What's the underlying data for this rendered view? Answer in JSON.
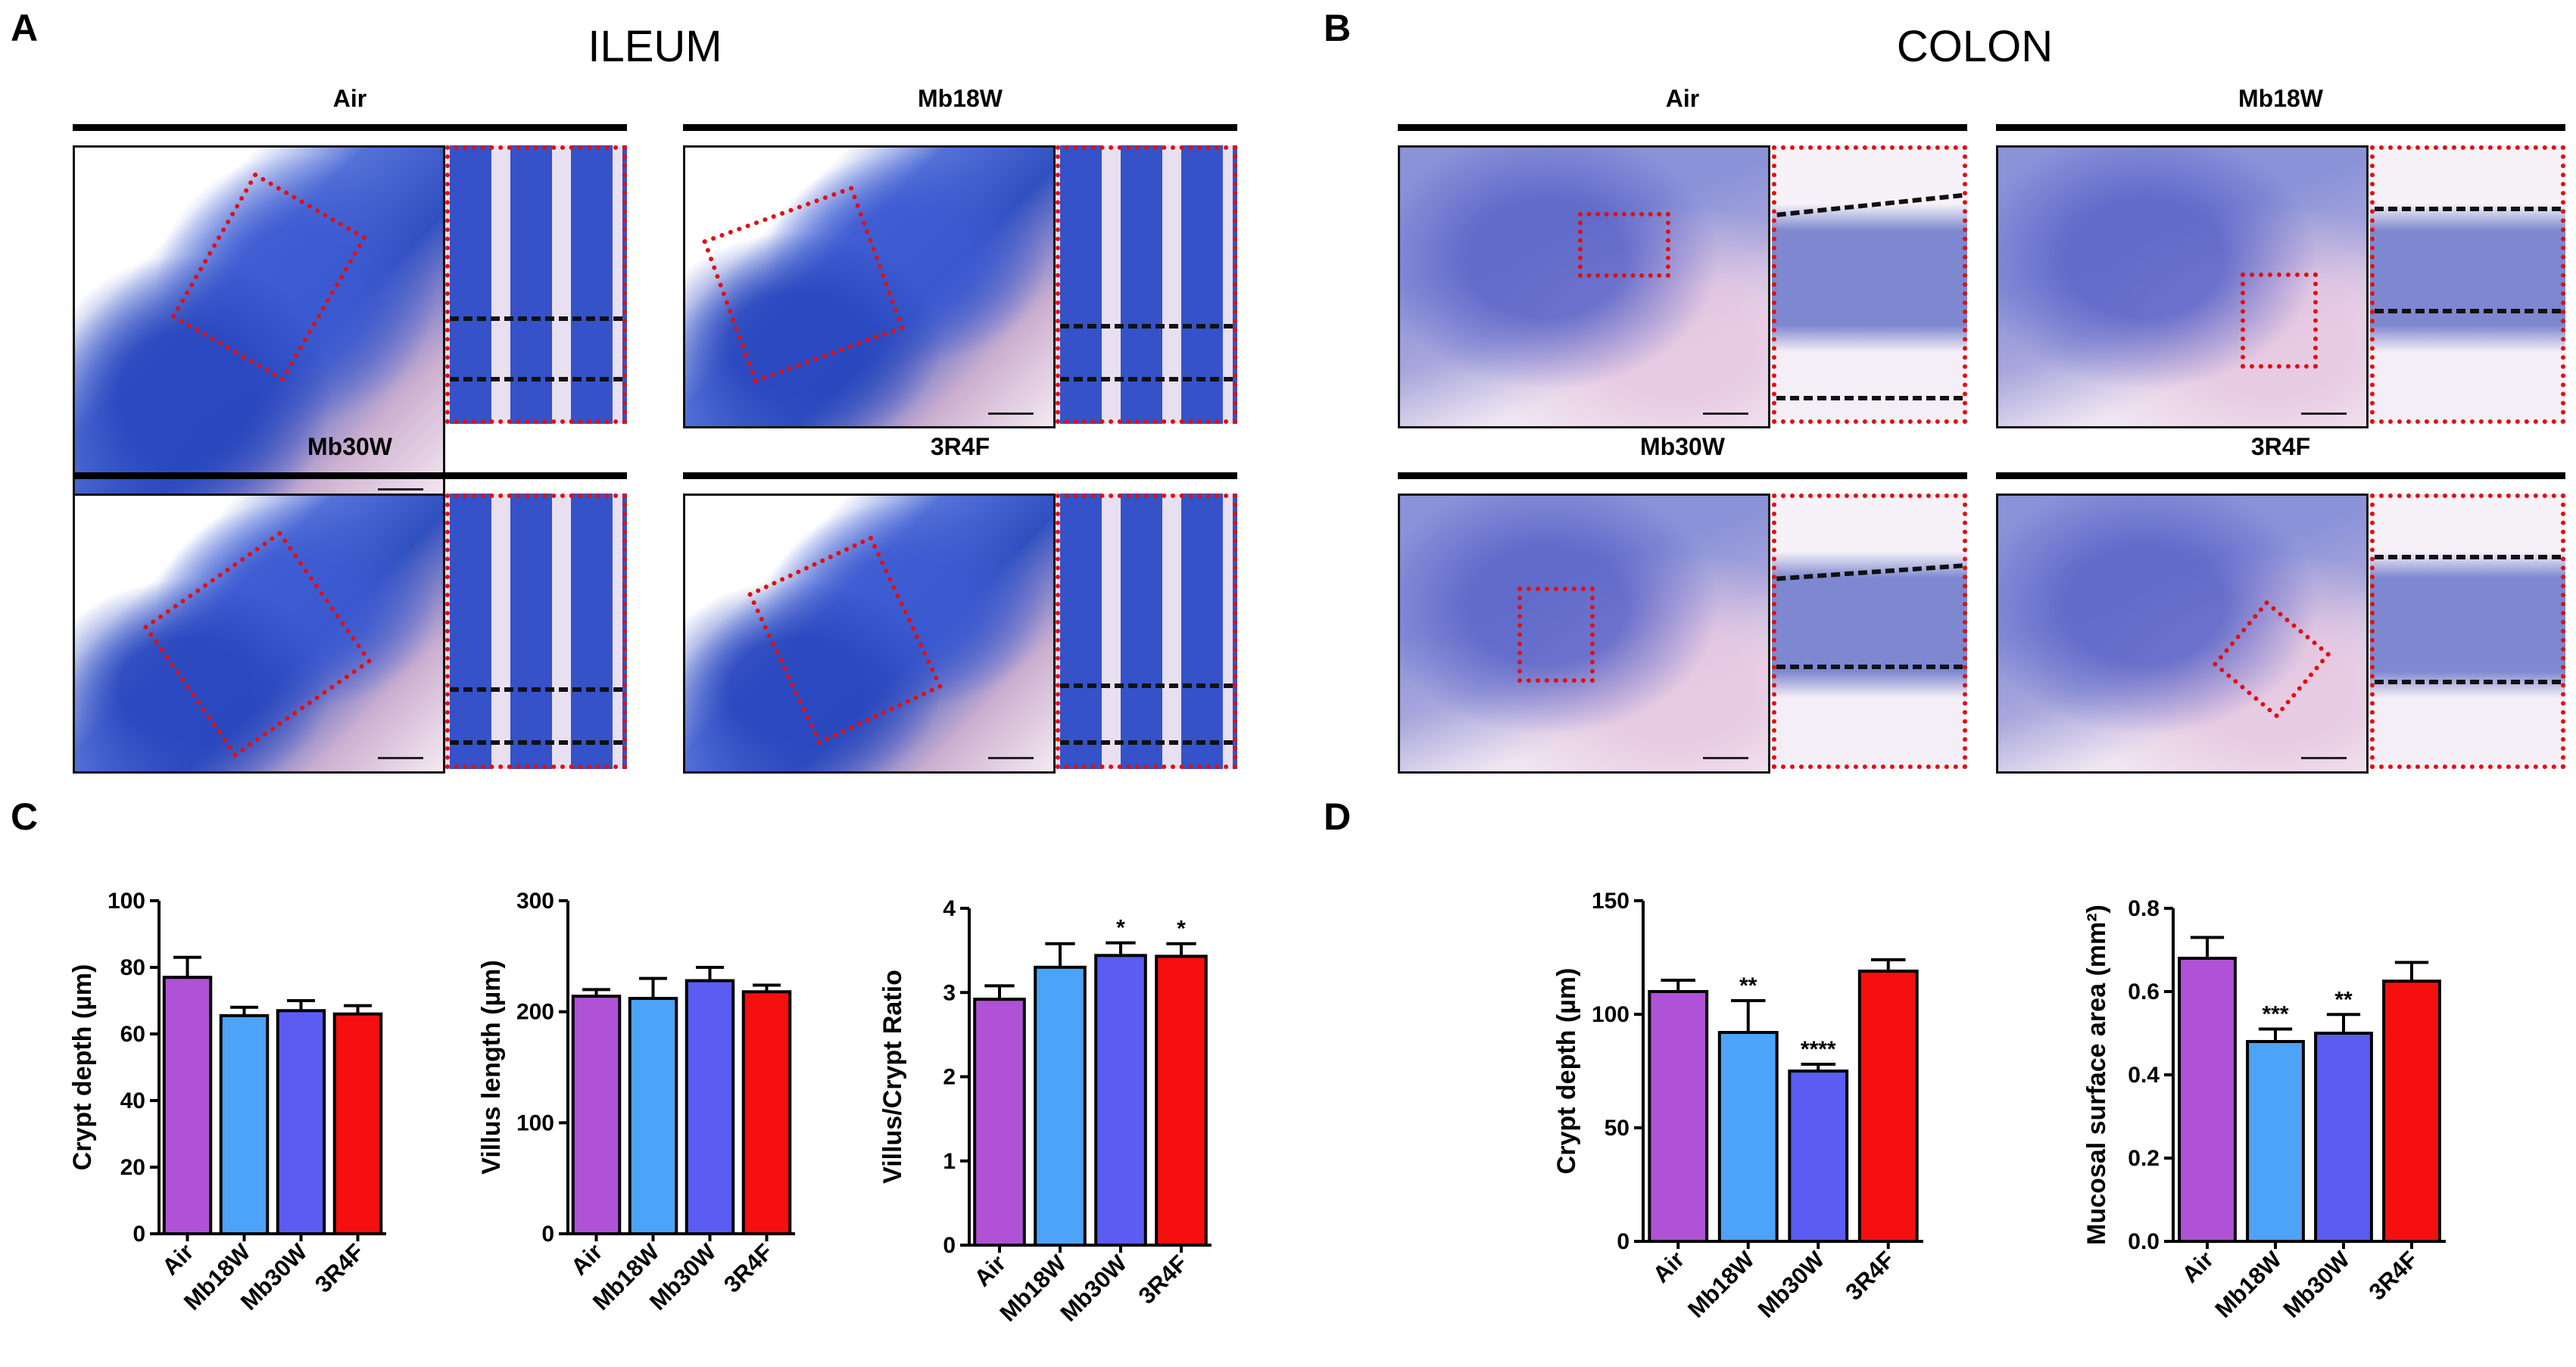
{
  "panels": {
    "A": {
      "letter": "A",
      "title": "ILEUM",
      "groups": [
        "Air",
        "Mb18W",
        "Mb30W",
        "3R4F"
      ]
    },
    "B": {
      "letter": "B",
      "title": "COLON",
      "groups": [
        "Air",
        "Mb18W",
        "Mb30W",
        "3R4F"
      ]
    },
    "C": {
      "letter": "C"
    },
    "D": {
      "letter": "D"
    }
  },
  "colors": {
    "Air": "#b052d6",
    "Mb18W": "#4ca3f7",
    "Mb30W": "#5a5cf2",
    "3R4F": "#f60f0f"
  },
  "chart_data": [
    {
      "id": "C1",
      "type": "bar",
      "ylabel": "Crypt depth (µm)",
      "ylim": [
        0,
        100
      ],
      "yticks": [
        "0",
        "20",
        "40",
        "60",
        "80",
        "100"
      ],
      "tickvals": [
        0,
        20,
        40,
        60,
        80,
        100
      ],
      "categories": [
        "Air",
        "Mb18W",
        "Mb30W",
        "3R4F"
      ],
      "values": [
        77,
        65.5,
        67,
        66
      ],
      "errors": [
        6,
        2.5,
        3,
        2.5
      ],
      "significance": [
        "",
        "",
        "",
        ""
      ]
    },
    {
      "id": "C2",
      "type": "bar",
      "ylabel": "Villus length (µm)",
      "ylim": [
        0,
        300
      ],
      "yticks": [
        "0",
        "100",
        "200",
        "300"
      ],
      "tickvals": [
        0,
        100,
        200,
        300
      ],
      "categories": [
        "Air",
        "Mb18W",
        "Mb30W",
        "3R4F"
      ],
      "values": [
        214,
        212,
        228,
        218
      ],
      "errors": [
        6,
        18,
        12,
        6
      ],
      "significance": [
        "",
        "",
        "",
        ""
      ]
    },
    {
      "id": "C3",
      "type": "bar",
      "ylabel": "Villus/Crypt Ratio",
      "ylim": [
        0,
        4
      ],
      "yticks": [
        "0",
        "1",
        "2",
        "3",
        "4"
      ],
      "tickvals": [
        0,
        1,
        2,
        3,
        4
      ],
      "categories": [
        "Air",
        "Mb18W",
        "Mb30W",
        "3R4F"
      ],
      "values": [
        2.92,
        3.3,
        3.44,
        3.43
      ],
      "errors": [
        0.16,
        0.28,
        0.15,
        0.15
      ],
      "significance": [
        "",
        "",
        "*",
        "*"
      ]
    },
    {
      "id": "D1",
      "type": "bar",
      "ylabel": "Crypt depth (µm)",
      "ylim": [
        0,
        150
      ],
      "yticks": [
        "0",
        "50",
        "100",
        "150"
      ],
      "tickvals": [
        0,
        50,
        100,
        150
      ],
      "categories": [
        "Air",
        "Mb18W",
        "Mb30W",
        "3R4F"
      ],
      "values": [
        110,
        92,
        75,
        119
      ],
      "errors": [
        5,
        14,
        3,
        5
      ],
      "significance": [
        "",
        "**",
        "****",
        ""
      ]
    },
    {
      "id": "D2",
      "type": "bar",
      "ylabel": "Mucosal surface area (mm²)",
      "ylim": [
        0,
        0.8
      ],
      "yticks": [
        "0.0",
        "0.2",
        "0.4",
        "0.6",
        "0.8"
      ],
      "tickvals": [
        0,
        0.2,
        0.4,
        0.6,
        0.8
      ],
      "categories": [
        "Air",
        "Mb18W",
        "Mb30W",
        "3R4F"
      ],
      "values": [
        0.68,
        0.48,
        0.5,
        0.625
      ],
      "errors": [
        0.05,
        0.03,
        0.045,
        0.045
      ],
      "significance": [
        "",
        "***",
        "**",
        ""
      ]
    }
  ]
}
